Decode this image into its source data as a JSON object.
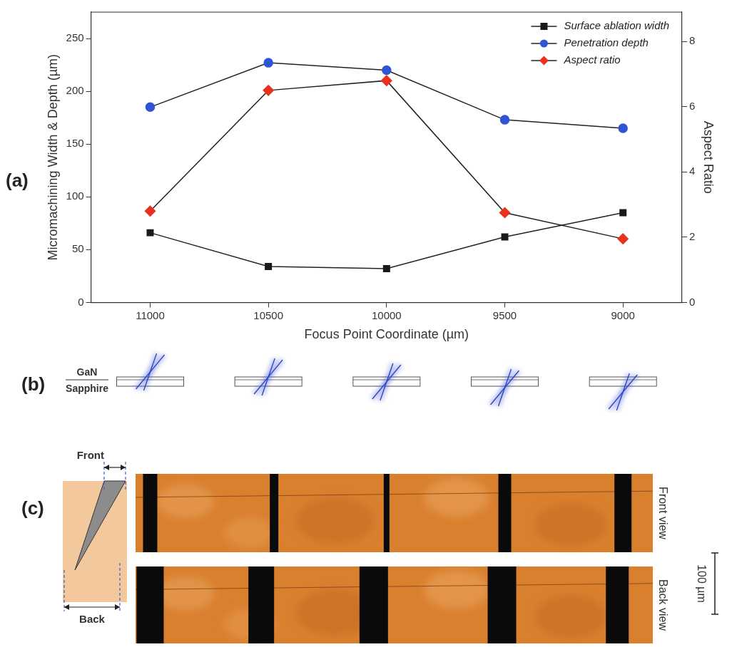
{
  "chart_data": {
    "type": "line",
    "x_label": "Focus Point Coordinate (µm)",
    "y_label": "Micromachining Width & Depth (µm)",
    "y2_label": "Aspect Ratio",
    "categories": [
      11000,
      10500,
      10000,
      9500,
      9000
    ],
    "series": [
      {
        "name": "Surface ablation width",
        "color": "#1a1a1a",
        "marker": "square",
        "values": [
          66,
          34,
          32,
          62,
          85
        ]
      },
      {
        "name": "Penetration depth",
        "color": "#2f55d4",
        "marker": "circle",
        "values": [
          185,
          227,
          220,
          173,
          165
        ]
      },
      {
        "name": "Aspect ratio",
        "color": "#e8321e",
        "marker": "diamond",
        "axis": "y2",
        "values": [
          2.8,
          6.5,
          6.8,
          2.75,
          1.95
        ]
      }
    ],
    "ylim": [
      0,
      275
    ],
    "yticks": [
      0,
      50,
      100,
      150,
      200,
      250
    ],
    "y2lim": [
      0,
      8.9
    ],
    "y2ticks": [
      0,
      2,
      4,
      6,
      8
    ],
    "grid": false,
    "legend": "upper right"
  },
  "panels": {
    "a": "(a)",
    "b": "(b)",
    "c": "(c)"
  },
  "diagram_b": {
    "top_layer": "GaN",
    "bottom_layer": "Sapphire"
  },
  "inset_c": {
    "front": "Front",
    "back": "Back"
  },
  "images_c": {
    "front_label": "Front view",
    "back_label": "Back view",
    "scale_bar": "100 µm"
  }
}
